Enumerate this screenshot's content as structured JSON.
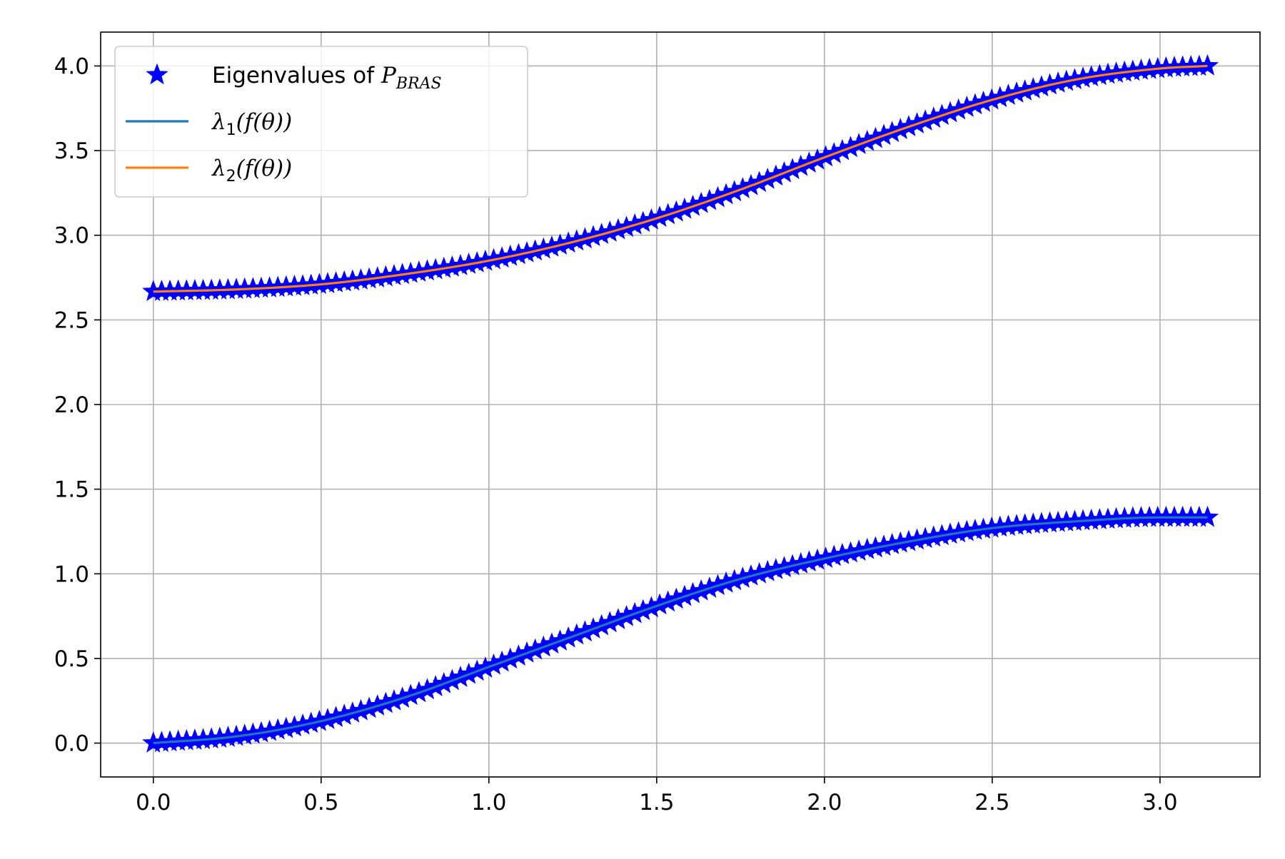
{
  "chart_data": {
    "type": "line",
    "title": "",
    "xlabel": "",
    "ylabel": "",
    "xlim": [
      -0.157,
      3.298
    ],
    "ylim": [
      -0.2,
      4.2
    ],
    "x_ticks": [
      0.0,
      0.5,
      1.0,
      1.5,
      2.0,
      2.5,
      3.0
    ],
    "x_tick_labels": [
      "0.0",
      "0.5",
      "1.0",
      "1.5",
      "2.0",
      "2.5",
      "3.0"
    ],
    "y_ticks": [
      0.0,
      0.5,
      1.0,
      1.5,
      2.0,
      2.5,
      3.0,
      3.5,
      4.0
    ],
    "y_tick_labels": [
      "0.0",
      "0.5",
      "1.0",
      "1.5",
      "2.0",
      "2.5",
      "3.0",
      "3.5",
      "4.0"
    ],
    "grid": true,
    "legend_position": "top-left",
    "x_range": [
      0,
      3.1416
    ],
    "series": [
      {
        "name": "Eigenvalues of P_BRAS",
        "legend_prefix": "Eigenvalues of ",
        "legend_symbol": "P",
        "legend_subscript": "BRAS",
        "kind": "scatter",
        "marker": "star",
        "color": "#0000ff",
        "branches": [
          {
            "x": [
              0.0,
              0.25,
              0.5,
              0.75,
              1.0,
              1.25,
              1.5,
              1.75,
              2.0,
              2.25,
              2.5,
              2.75,
              3.0,
              3.1416
            ],
            "y": [
              0.0,
              0.04,
              0.13,
              0.27,
              0.45,
              0.63,
              0.81,
              0.97,
              1.09,
              1.19,
              1.27,
              1.31,
              1.333,
              1.333
            ]
          },
          {
            "x": [
              0.0,
              0.25,
              0.5,
              0.75,
              1.0,
              1.25,
              1.5,
              1.75,
              2.0,
              2.25,
              2.5,
              2.75,
              3.0,
              3.1416
            ],
            "y": [
              2.667,
              2.68,
              2.71,
              2.77,
              2.85,
              2.96,
              3.1,
              3.27,
              3.46,
              3.64,
              3.8,
              3.92,
              3.985,
              4.0
            ]
          }
        ],
        "point_count": 128
      },
      {
        "name": "λ1(f(θ))",
        "legend_symbol": "λ",
        "legend_subscript": "1",
        "legend_suffix": "(f(θ))",
        "kind": "line",
        "color": "#1f77b4",
        "x": [
          0.0,
          0.25,
          0.5,
          0.75,
          1.0,
          1.25,
          1.5,
          1.75,
          2.0,
          2.25,
          2.5,
          2.75,
          3.0,
          3.1416
        ],
        "y": [
          0.0,
          0.04,
          0.13,
          0.27,
          0.45,
          0.63,
          0.81,
          0.97,
          1.09,
          1.19,
          1.27,
          1.31,
          1.333,
          1.333
        ]
      },
      {
        "name": "λ2(f(θ))",
        "legend_symbol": "λ",
        "legend_subscript": "2",
        "legend_suffix": "(f(θ))",
        "kind": "line",
        "color": "#ff7f0e",
        "x": [
          0.0,
          0.25,
          0.5,
          0.75,
          1.0,
          1.25,
          1.5,
          1.75,
          2.0,
          2.25,
          2.5,
          2.75,
          3.0,
          3.1416
        ],
        "y": [
          2.667,
          2.68,
          2.71,
          2.77,
          2.85,
          2.96,
          3.1,
          3.27,
          3.46,
          3.64,
          3.8,
          3.92,
          3.985,
          4.0
        ]
      }
    ],
    "colors": {
      "grid": "#b0b0b0",
      "axes": "#000000",
      "legend_border": "#cccccc"
    }
  }
}
